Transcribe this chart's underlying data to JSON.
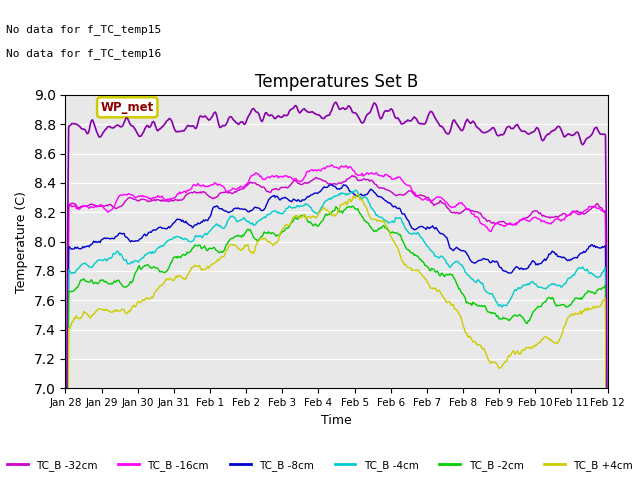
{
  "title": "Temperatures Set B",
  "xlabel": "Time",
  "ylabel": "Temperature (C)",
  "ylim": [
    7.0,
    9.0
  ],
  "yticks": [
    7.0,
    7.2,
    7.4,
    7.6,
    7.8,
    8.0,
    8.2,
    8.4,
    8.6,
    8.8,
    9.0
  ],
  "bg_color": "#e8e8e8",
  "fig_color": "#ffffff",
  "no_data_line1": "No data for f_TC_temp15",
  "no_data_line2": "No data for f_TC_temp16",
  "wp_met_label": "WP_met",
  "wp_met_color": "#8B0000",
  "wp_met_box_color": "#cccc00",
  "legend_labels": [
    "TC_B -32cm",
    "TC_B -16cm",
    "TC_B -8cm",
    "TC_B -4cm",
    "TC_B -2cm",
    "TC_B +4cm"
  ],
  "line_colors": [
    "#cc00cc",
    "#ff00ff",
    "#0000cc",
    "#00cccc",
    "#00cc00",
    "#cccc00"
  ],
  "wp_color": "#8800aa",
  "xtick_labels": [
    "Jan 28",
    "Jan 29",
    "Jan 30",
    "Jan 31",
    "Feb 1",
    "Feb 2",
    "Feb 3",
    "Feb 4",
    "Feb 5",
    "Feb 6",
    "Feb 7",
    "Feb 8",
    "Feb 9",
    "Feb 10",
    "Feb 11",
    "Feb 12"
  ],
  "n_points": 500
}
